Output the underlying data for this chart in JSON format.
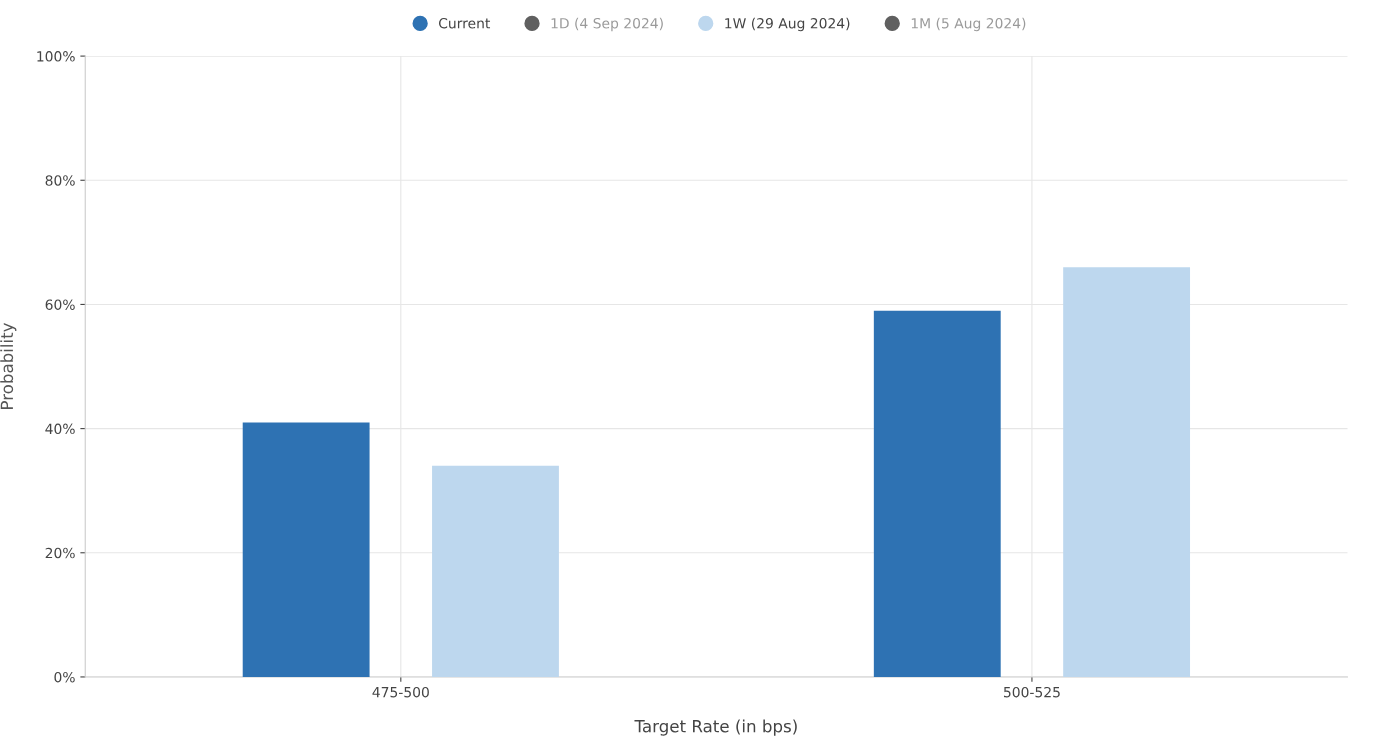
{
  "chart_data": {
    "type": "bar",
    "xlabel": "Target Rate (in bps)",
    "ylabel": "Probability",
    "categories": [
      "475-500",
      "500-525"
    ],
    "series": [
      {
        "name": "Current",
        "color": "#2e72b3",
        "values": [
          41,
          59
        ]
      },
      {
        "name": "1D (4 Sep 2024)",
        "color": "#606060",
        "values": [
          null,
          null
        ]
      },
      {
        "name": "1W (29 Aug 2024)",
        "color": "#bdd7ee",
        "values": [
          34,
          66
        ]
      },
      {
        "name": "1M (5 Aug 2024)",
        "color": "#606060",
        "values": [
          null,
          null
        ]
      }
    ],
    "ylim": [
      0,
      100
    ],
    "yticks": [
      {
        "value": 0,
        "label": "0%"
      },
      {
        "value": 20,
        "label": "20%"
      },
      {
        "value": 40,
        "label": "40%"
      },
      {
        "value": 60,
        "label": "60%"
      },
      {
        "value": 80,
        "label": "80%"
      },
      {
        "value": 100,
        "label": "100%"
      }
    ],
    "grid": true,
    "legend": "top"
  }
}
